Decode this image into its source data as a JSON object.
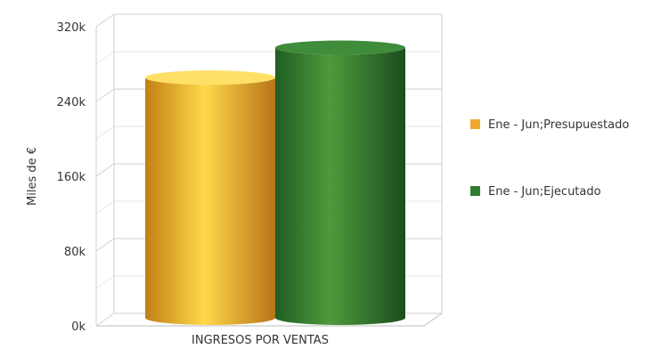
{
  "chart_data": {
    "type": "bar",
    "style": "3d-cylinder",
    "categories": [
      "INGRESOS POR VENTAS"
    ],
    "series": [
      {
        "name": "Ene - Jun;Presupuestado",
        "values": [
          258000
        ],
        "color": "#f0a830"
      },
      {
        "name": "Ene - Jun;Ejecutado",
        "values": [
          290000
        ],
        "color": "#2e7d32"
      }
    ],
    "ylabel": "Miles de  €",
    "ylim": [
      0,
      320000
    ],
    "yticks": [
      0,
      80000,
      160000,
      240000,
      320000
    ],
    "ytick_labels": [
      "0k",
      "80k",
      "160k",
      "240k",
      "320k"
    ],
    "grid": true,
    "legend_position": "right"
  }
}
